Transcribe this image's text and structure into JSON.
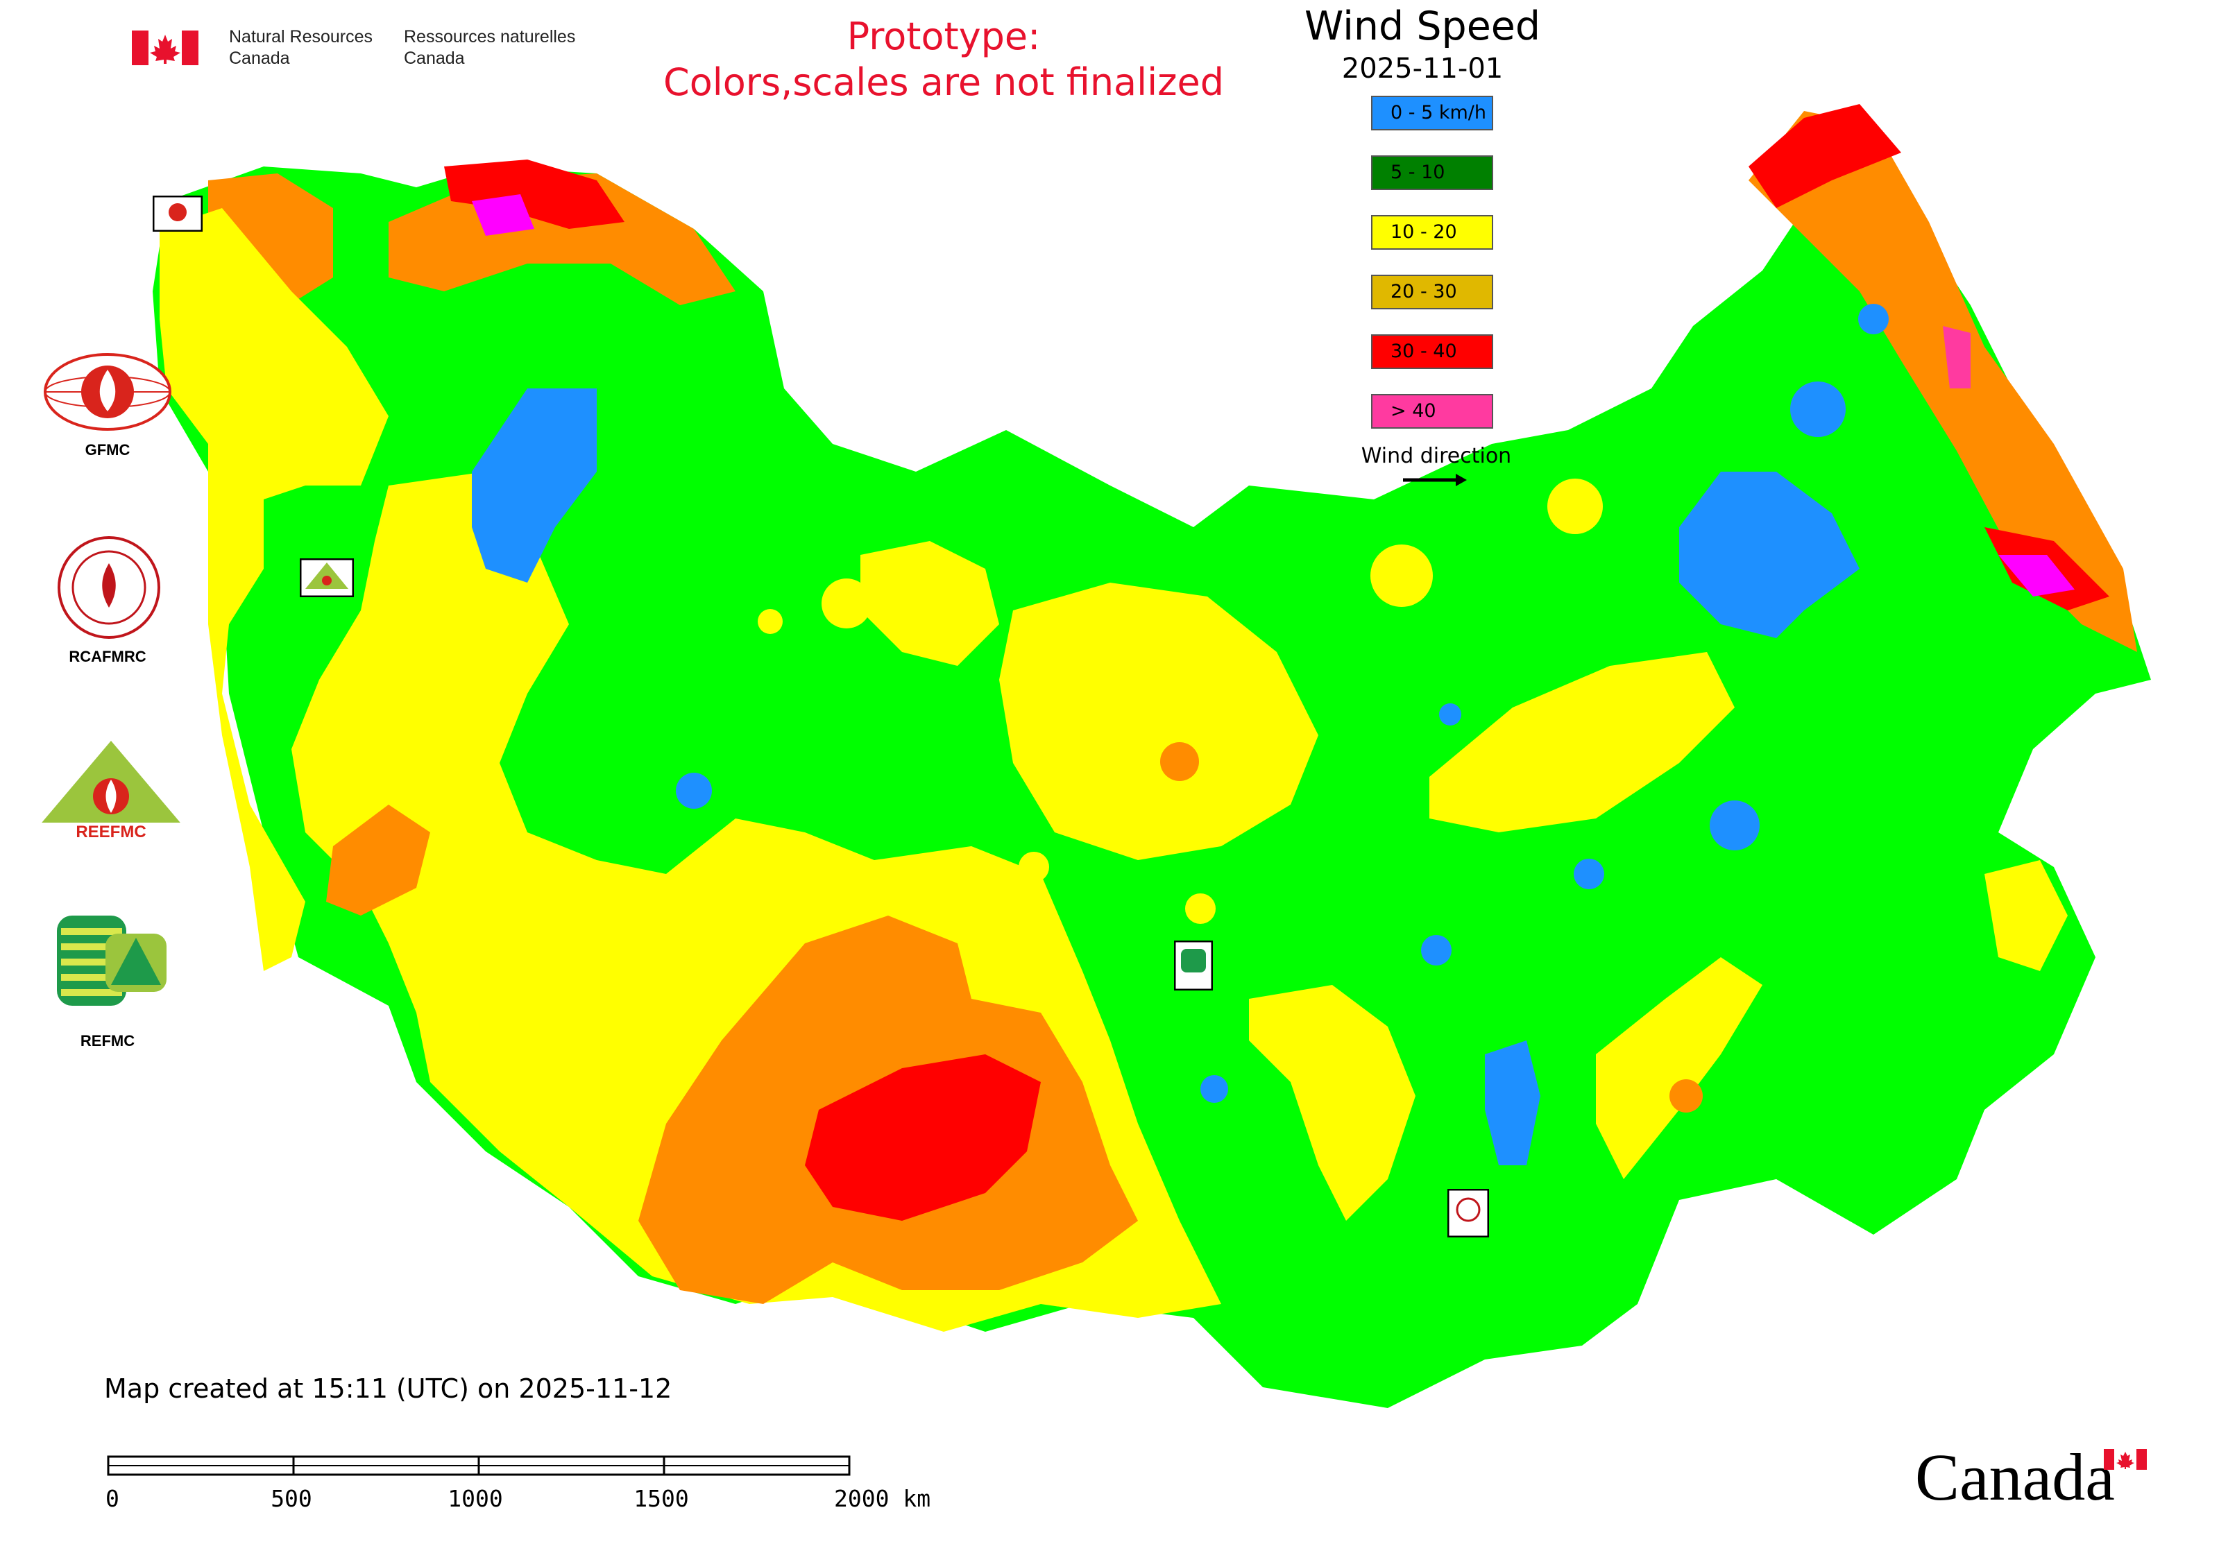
{
  "header": {
    "nrcan_en_line1": "Natural Resources",
    "nrcan_en_line2": "Canada",
    "nrcan_fr_line1": "Ressources naturelles",
    "nrcan_fr_line2": "Canada",
    "prototype_line1": "Prototype:",
    "prototype_line2": "Colors,scales are not finalized"
  },
  "legend": {
    "title": "Wind Speed",
    "date": "2025-11-01",
    "classes": [
      {
        "label": "0 - 5 km/h",
        "color": "#1e90ff"
      },
      {
        "label": "5 - 10",
        "color": "#008000"
      },
      {
        "label": "10 - 20",
        "color": "#ffff00"
      },
      {
        "label": "20 - 30",
        "color": "#e0b800"
      },
      {
        "label": "30 - 40",
        "color": "#ff0000"
      },
      {
        "label": "> 40",
        "color": "#ff3aa0"
      }
    ],
    "wind_direction_label": "Wind direction"
  },
  "map_colors": {
    "calm": "#1e90ff",
    "green": "#00ff00",
    "yellow": "#ffff00",
    "orange": "#ff8c00",
    "red": "#ff0000",
    "magenta": "#ff00ff",
    "border": "#cc66cc"
  },
  "side_logos": [
    {
      "name": "GFMC",
      "label": "GFMC"
    },
    {
      "name": "RCAFMRC",
      "label": "RCAFMRC"
    },
    {
      "name": "REEFMC",
      "label": "REEFMC"
    },
    {
      "name": "REFMC",
      "label": "REFMC"
    }
  ],
  "footer": {
    "map_created": "Map created at 15:11 (UTC) on 2025-11-12",
    "scale_ticks": [
      "0",
      "500",
      "1000",
      "1500",
      "2000 km"
    ],
    "canada_wordmark": "Canada"
  }
}
